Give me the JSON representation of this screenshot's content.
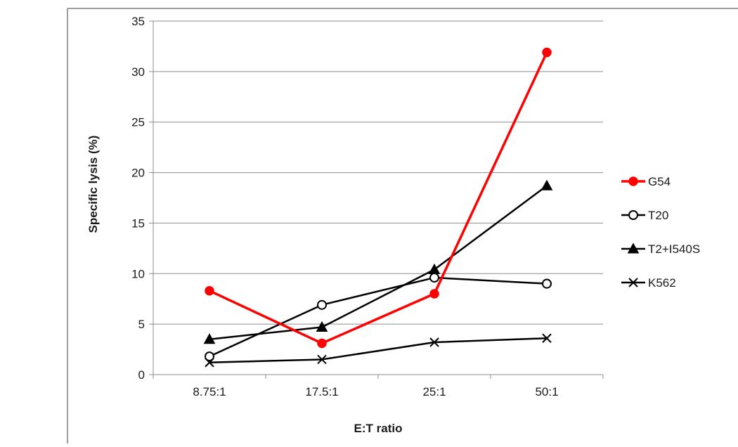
{
  "chart_data": {
    "type": "line",
    "categories": [
      "8.75:1",
      "17.5:1",
      "25:1",
      "50:1"
    ],
    "xlabel": "E:T ratio",
    "ylabel": "Specific lysis (%)",
    "ylim": [
      0,
      35
    ],
    "yticks": [
      0,
      5,
      10,
      15,
      20,
      25,
      30,
      35
    ],
    "grid": "horizontal",
    "legend": "right",
    "series": [
      {
        "name": "G54",
        "values": [
          8.3,
          3.1,
          8.0,
          31.9
        ],
        "color": "#ff0000",
        "marker": "filled-circle"
      },
      {
        "name": "T20",
        "values": [
          1.8,
          6.9,
          9.6,
          9.0
        ],
        "color": "#000000",
        "marker": "open-circle"
      },
      {
        "name": "T2+I540S",
        "values": [
          3.5,
          4.7,
          10.4,
          18.7
        ],
        "color": "#000000",
        "marker": "triangle"
      },
      {
        "name": "K562",
        "values": [
          1.2,
          1.5,
          3.2,
          3.6
        ],
        "color": "#000000",
        "marker": "x"
      }
    ]
  }
}
